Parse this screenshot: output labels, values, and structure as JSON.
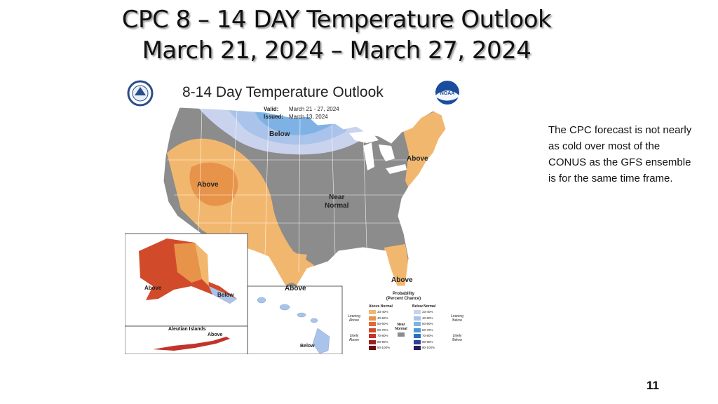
{
  "slide": {
    "title_line1": "CPC  8 – 14 DAY Temperature Outlook",
    "title_line2": "March 21, 2024 – March 27, 2024",
    "note": "The CPC forecast  is not nearly as cold over most of the CONUS as the GFS ensemble is for the same time frame.",
    "page_number": "11"
  },
  "map": {
    "title": "8-14 Day Temperature Outlook",
    "valid_label": "Valid:",
    "valid_value": "March 21 - 27, 2024",
    "issued_label": "Issued:",
    "issued_value": "March 13, 2024",
    "logos": [
      "doc-seal",
      "noaa-logo"
    ],
    "noaa_text": "NOAA",
    "region_labels": {
      "below_north": "Below",
      "above_west": "Above",
      "near_normal_line1": "Near",
      "near_normal_line2": "Normal",
      "above_east": "Above",
      "above_south": "Above",
      "above_florida": "Above",
      "alaska_above": "Above",
      "alaska_below": "Below",
      "aleutian_above": "Above",
      "hawaii_below": "Below"
    },
    "inset_caption": "Aleutian Islands",
    "colors": {
      "near_normal": "#8c8c8c",
      "above_33_40": "#f2b76e",
      "above_40_50": "#e8934a",
      "above_50_60": "#dd6a3a",
      "above_60_70": "#d14b2b",
      "above_70_80": "#c2332a",
      "above_80_90": "#9f1f1f",
      "above_90_100": "#6b0f12",
      "below_33_40": "#c9d3ee",
      "below_40_50": "#a9c3ea",
      "below_50_60": "#7fb2e4",
      "below_60_70": "#4a97d8",
      "below_70_80": "#2a6fbe",
      "below_80_90": "#2d3f97",
      "below_90_100": "#2a1a5e"
    }
  },
  "legend": {
    "title_line1": "Probability",
    "title_line2": "(Percent Chance)",
    "above_header": "Above Normal",
    "below_header": "Below Normal",
    "near_header_line1": "Near",
    "near_header_line2": "Normal",
    "leaning_above_line1": "Leaning",
    "leaning_above_line2": "Above",
    "likely_above_line1": "Likely",
    "likely_above_line2": "Above",
    "leaning_below_line1": "Leaning",
    "leaning_below_line2": "Below",
    "likely_below_line1": "Likely",
    "likely_below_line2": "Below",
    "above_bins": [
      "33-40%",
      "40-50%",
      "50-60%",
      "60-70%",
      "70-80%",
      "80-90%",
      "90-100%"
    ],
    "below_bins": [
      "33-40%",
      "40-50%",
      "50-60%",
      "60-70%",
      "70-80%",
      "80-90%",
      "90-100%"
    ]
  }
}
